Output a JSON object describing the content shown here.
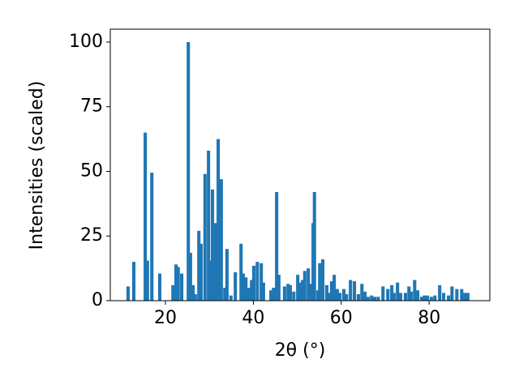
{
  "chart_data": {
    "type": "bar",
    "xlabel": "2θ (°)",
    "ylabel": "Intensities (scaled)",
    "x": [
      11.5,
      12.8,
      15.4,
      15.9,
      16.9,
      18.7,
      21.7,
      22.4,
      22.9,
      23.7,
      25.2,
      25.7,
      26.3,
      26.8,
      27.6,
      28.1,
      29.0,
      29.8,
      30.1,
      30.7,
      31.4,
      32.0,
      32.7,
      33.5,
      34.0,
      34.9,
      35.9,
      37.2,
      37.7,
      38.3,
      39.0,
      39.6,
      40.1,
      40.9,
      41.8,
      42.3,
      44.0,
      44.6,
      45.3,
      45.8,
      47.1,
      47.9,
      48.4,
      49.2,
      50.1,
      50.6,
      51.2,
      51.7,
      52.5,
      53.0,
      53.6,
      53.9,
      54.7,
      55.1,
      55.8,
      56.7,
      57.3,
      57.8,
      58.4,
      59.1,
      59.7,
      60.6,
      61.2,
      62.1,
      63.0,
      63.9,
      64.7,
      65.4,
      66.1,
      66.9,
      67.6,
      68.4,
      69.5,
      70.6,
      71.5,
      72.0,
      72.8,
      73.5,
      74.6,
      75.4,
      75.9,
      76.7,
      77.4,
      78.3,
      78.9,
      79.6,
      80.5,
      81.3,
      82.4,
      83.3,
      84.4,
      85.2,
      86.3,
      87.4,
      88.1,
      88.8
    ],
    "values": [
      5.5,
      15,
      65,
      15.5,
      49.5,
      10.5,
      6,
      14,
      13,
      10.5,
      100,
      18.5,
      6,
      2.5,
      27,
      22,
      49,
      58,
      15.5,
      43,
      30,
      62.5,
      47,
      5,
      20,
      2,
      11,
      22,
      10.5,
      9,
      5,
      8,
      13.5,
      15,
      14.5,
      7,
      4,
      5,
      42,
      10,
      5.5,
      6.5,
      6,
      3.5,
      10,
      7,
      8,
      11.5,
      12.5,
      6.5,
      30,
      42,
      4,
      14.5,
      16,
      6,
      3,
      7.5,
      10,
      4.5,
      3,
      4.5,
      2.5,
      8,
      7.5,
      2.5,
      6.5,
      3.5,
      1.5,
      2,
      1.5,
      1.5,
      5.5,
      4.5,
      6,
      3,
      7,
      3,
      3,
      5.5,
      3.5,
      8,
      4,
      1.5,
      2,
      2,
      1.5,
      2,
      6,
      3,
      2,
      5.5,
      4.5,
      4.5,
      3,
      3
    ],
    "bar_width": 0.75,
    "color": "#1f77b4",
    "xlim": [
      7.45,
      93.8
    ],
    "xticks": [
      20,
      40,
      60,
      80
    ],
    "ylim": [
      0,
      105
    ],
    "yticks": [
      0,
      25,
      50,
      75,
      100
    ]
  }
}
